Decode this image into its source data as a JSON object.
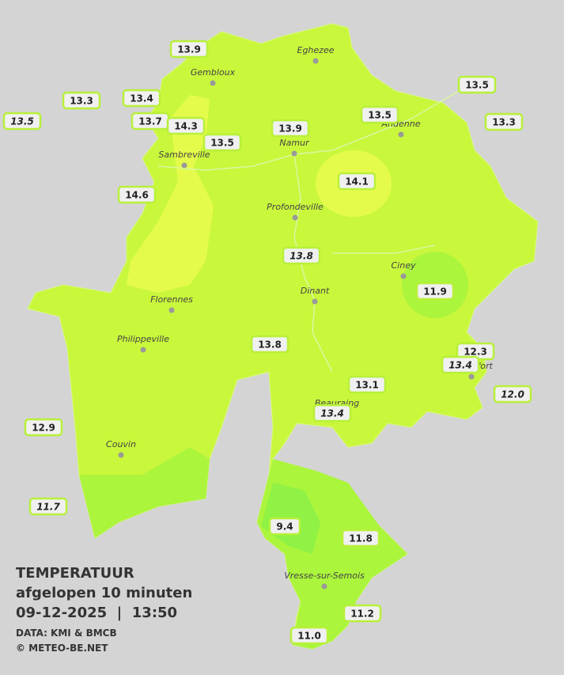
{
  "map": {
    "towns": [
      "Eghezee",
      "Gembloux",
      "Andenne",
      "Namur",
      "Sambreville",
      "Profondeville",
      "Ciney",
      "Dinant",
      "Florennes",
      "Philippeville",
      "Beauraing",
      "Rochefort",
      "Couvin",
      "Vresse-sur-Semois"
    ],
    "stations": [
      {
        "label": "13.9",
        "italic": false
      },
      {
        "label": "13.3",
        "italic": false
      },
      {
        "label": "13.4",
        "italic": false
      },
      {
        "label": "13.5",
        "italic": true
      },
      {
        "label": "13.7",
        "italic": false
      },
      {
        "label": "14.3",
        "italic": false
      },
      {
        "label": "13.5",
        "italic": false
      },
      {
        "label": "13.9",
        "italic": false
      },
      {
        "label": "13.5",
        "italic": false
      },
      {
        "label": "13.5",
        "italic": false
      },
      {
        "label": "13.3",
        "italic": false
      },
      {
        "label": "14.6",
        "italic": false
      },
      {
        "label": "14.1",
        "italic": false
      },
      {
        "label": "13.8",
        "italic": true
      },
      {
        "label": "11.9",
        "italic": false
      },
      {
        "label": "13.8",
        "italic": false
      },
      {
        "label": "13.1",
        "italic": false
      },
      {
        "label": "13.4",
        "italic": true
      },
      {
        "label": "12.3",
        "italic": false
      },
      {
        "label": "13.4",
        "italic": true
      },
      {
        "label": "12.0",
        "italic": true
      },
      {
        "label": "12.9",
        "italic": false
      },
      {
        "label": "11.7",
        "italic": true
      },
      {
        "label": "9.4",
        "italic": false
      },
      {
        "label": "11.8",
        "italic": false
      },
      {
        "label": "11.2",
        "italic": false
      },
      {
        "label": "11.0",
        "italic": false
      }
    ],
    "legend": {
      "title": "TEMPERATUUR",
      "period": "afgelopen 10 minuten",
      "timestamp": "09-12-2025  |  13:50",
      "source": "DATA: KMI & BMCB",
      "copyright": "© METEO-BE.NET"
    }
  }
}
